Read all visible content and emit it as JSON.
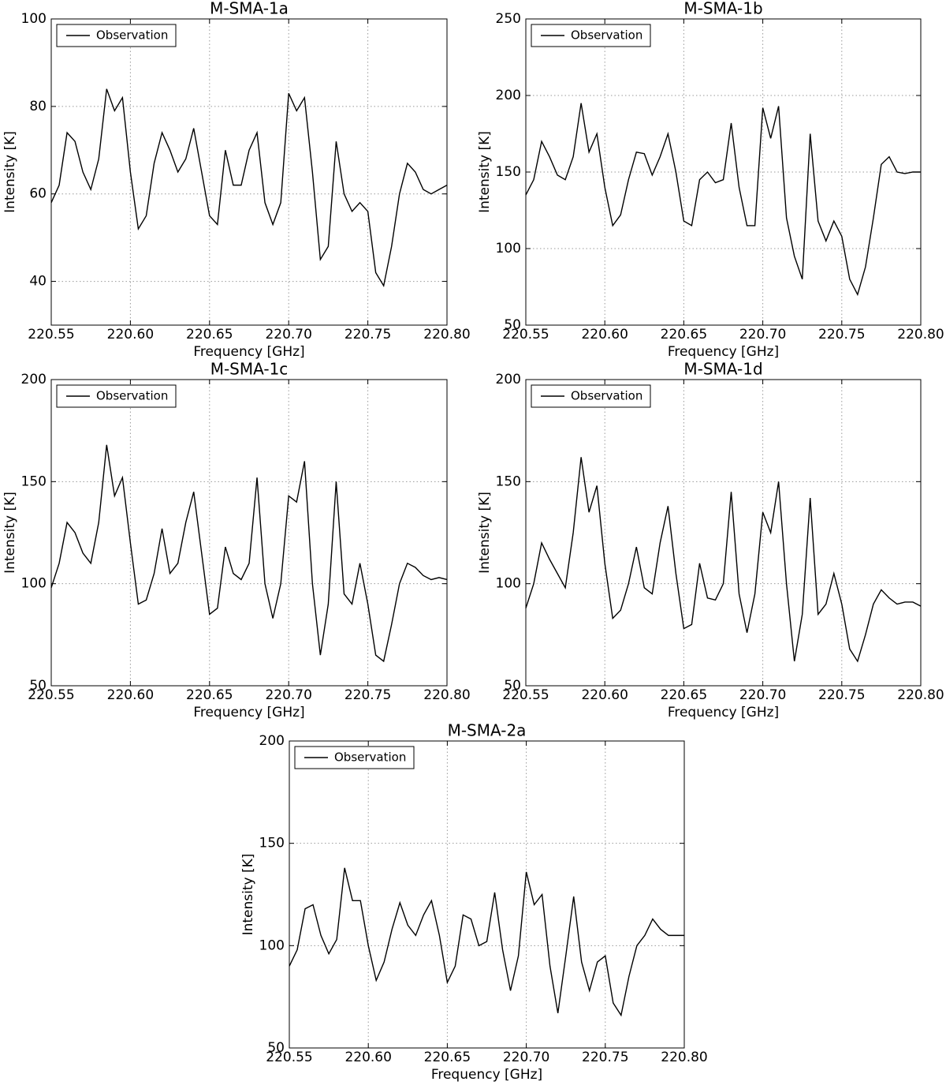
{
  "chart_data": [
    {
      "type": "line",
      "title": "M-SMA-1a",
      "xlabel": "Frequency [GHz]",
      "ylabel": "Intensity [K]",
      "grid": true,
      "legend": "upper left",
      "xlim": [
        220.55,
        220.8
      ],
      "ylim": [
        30,
        100
      ],
      "xticks": [
        220.55,
        {
          "value": 220.6,
          "label": "220.60"
        },
        220.65,
        {
          "value": 220.7,
          "label": "220.70"
        },
        220.75,
        {
          "value": 220.8,
          "label": "220.80"
        }
      ],
      "yticks": [
        40,
        60,
        80,
        100
      ],
      "x": [
        220.55,
        220.555,
        220.56,
        220.565,
        220.57,
        220.575,
        220.58,
        220.585,
        220.59,
        220.595,
        220.6,
        220.605,
        220.61,
        220.615,
        220.62,
        220.625,
        220.63,
        220.635,
        220.64,
        220.645,
        220.65,
        220.655,
        220.66,
        220.665,
        220.67,
        220.675,
        220.68,
        220.685,
        220.69,
        220.695,
        220.7,
        220.705,
        220.71,
        220.715,
        220.72,
        220.725,
        220.73,
        220.735,
        220.74,
        220.745,
        220.75,
        220.755,
        220.76,
        220.765,
        220.77,
        220.775,
        220.78,
        220.785,
        220.79,
        220.795,
        220.8
      ],
      "series": [
        {
          "name": "Observation",
          "color": "#000000",
          "values": [
            58,
            62,
            74,
            72,
            65,
            61,
            68,
            84,
            79,
            82,
            65,
            52,
            55,
            67,
            74,
            70,
            65,
            68,
            75,
            65,
            55,
            53,
            70,
            62,
            62,
            70,
            74,
            58,
            53,
            58,
            83,
            79,
            82,
            65,
            45,
            48,
            72,
            60,
            56,
            58,
            56,
            42,
            39,
            48,
            60,
            67,
            65,
            61,
            60,
            61,
            62
          ]
        }
      ]
    },
    {
      "type": "line",
      "title": "M-SMA-1b",
      "xlabel": "Frequency [GHz]",
      "ylabel": "Intensity [K]",
      "grid": true,
      "legend": "upper left",
      "xlim": [
        220.55,
        220.8
      ],
      "ylim": [
        50,
        250
      ],
      "xticks": [
        220.55,
        {
          "value": 220.6,
          "label": "220.60"
        },
        220.65,
        {
          "value": 220.7,
          "label": "220.70"
        },
        220.75,
        {
          "value": 220.8,
          "label": "220.80"
        }
      ],
      "yticks": [
        50,
        100,
        150,
        200,
        250
      ],
      "x": [
        220.55,
        220.555,
        220.56,
        220.565,
        220.57,
        220.575,
        220.58,
        220.585,
        220.59,
        220.595,
        220.6,
        220.605,
        220.61,
        220.615,
        220.62,
        220.625,
        220.63,
        220.635,
        220.64,
        220.645,
        220.65,
        220.655,
        220.66,
        220.665,
        220.67,
        220.675,
        220.68,
        220.685,
        220.69,
        220.695,
        220.7,
        220.705,
        220.71,
        220.715,
        220.72,
        220.725,
        220.73,
        220.735,
        220.74,
        220.745,
        220.75,
        220.755,
        220.76,
        220.765,
        220.77,
        220.775,
        220.78,
        220.785,
        220.79,
        220.795,
        220.8
      ],
      "series": [
        {
          "name": "Observation",
          "color": "#000000",
          "values": [
            135,
            145,
            170,
            160,
            148,
            145,
            160,
            195,
            163,
            175,
            140,
            115,
            122,
            145,
            163,
            162,
            148,
            160,
            175,
            150,
            118,
            115,
            145,
            150,
            143,
            145,
            182,
            140,
            115,
            115,
            192,
            172,
            193,
            120,
            95,
            80,
            175,
            118,
            105,
            118,
            108,
            80,
            70,
            88,
            120,
            155,
            160,
            150,
            149,
            150,
            150
          ]
        }
      ]
    },
    {
      "type": "line",
      "title": "M-SMA-1c",
      "xlabel": "Frequency [GHz]",
      "ylabel": "Intensity [K]",
      "grid": true,
      "legend": "upper left",
      "xlim": [
        220.55,
        220.8
      ],
      "ylim": [
        50,
        200
      ],
      "xticks": [
        220.55,
        {
          "value": 220.6,
          "label": "220.60"
        },
        220.65,
        {
          "value": 220.7,
          "label": "220.70"
        },
        220.75,
        {
          "value": 220.8,
          "label": "220.80"
        }
      ],
      "yticks": [
        50,
        100,
        150,
        200
      ],
      "x": [
        220.55,
        220.555,
        220.56,
        220.565,
        220.57,
        220.575,
        220.58,
        220.585,
        220.59,
        220.595,
        220.6,
        220.605,
        220.61,
        220.615,
        220.62,
        220.625,
        220.63,
        220.635,
        220.64,
        220.645,
        220.65,
        220.655,
        220.66,
        220.665,
        220.67,
        220.675,
        220.68,
        220.685,
        220.69,
        220.695,
        220.7,
        220.705,
        220.71,
        220.715,
        220.72,
        220.725,
        220.73,
        220.735,
        220.74,
        220.745,
        220.75,
        220.755,
        220.76,
        220.765,
        220.77,
        220.775,
        220.78,
        220.785,
        220.79,
        220.795,
        220.8
      ],
      "series": [
        {
          "name": "Observation",
          "color": "#000000",
          "values": [
            98,
            110,
            130,
            125,
            115,
            110,
            130,
            168,
            143,
            152,
            120,
            90,
            92,
            105,
            127,
            105,
            110,
            130,
            145,
            115,
            85,
            88,
            118,
            105,
            102,
            110,
            152,
            100,
            83,
            100,
            143,
            140,
            160,
            100,
            65,
            90,
            150,
            95,
            90,
            110,
            90,
            65,
            62,
            80,
            100,
            110,
            108,
            104,
            102,
            103,
            102
          ]
        }
      ]
    },
    {
      "type": "line",
      "title": "M-SMA-1d",
      "xlabel": "Frequency [GHz]",
      "ylabel": "Intensity [K]",
      "grid": true,
      "legend": "upper left",
      "xlim": [
        220.55,
        220.8
      ],
      "ylim": [
        50,
        200
      ],
      "xticks": [
        220.55,
        {
          "value": 220.6,
          "label": "220.60"
        },
        220.65,
        {
          "value": 220.7,
          "label": "220.70"
        },
        220.75,
        {
          "value": 220.8,
          "label": "220.80"
        }
      ],
      "yticks": [
        50,
        100,
        150,
        200
      ],
      "x": [
        220.55,
        220.555,
        220.56,
        220.565,
        220.57,
        220.575,
        220.58,
        220.585,
        220.59,
        220.595,
        220.6,
        220.605,
        220.61,
        220.615,
        220.62,
        220.625,
        220.63,
        220.635,
        220.64,
        220.645,
        220.65,
        220.655,
        220.66,
        220.665,
        220.67,
        220.675,
        220.68,
        220.685,
        220.69,
        220.695,
        220.7,
        220.705,
        220.71,
        220.715,
        220.72,
        220.725,
        220.73,
        220.735,
        220.74,
        220.745,
        220.75,
        220.755,
        220.76,
        220.765,
        220.77,
        220.775,
        220.78,
        220.785,
        220.79,
        220.795,
        220.8
      ],
      "series": [
        {
          "name": "Observation",
          "color": "#000000",
          "values": [
            88,
            100,
            120,
            112,
            105,
            98,
            125,
            162,
            135,
            148,
            110,
            83,
            87,
            100,
            118,
            98,
            95,
            120,
            138,
            105,
            78,
            80,
            110,
            93,
            92,
            100,
            145,
            95,
            76,
            95,
            135,
            125,
            150,
            100,
            62,
            85,
            142,
            85,
            90,
            105,
            90,
            68,
            62,
            75,
            90,
            97,
            93,
            90,
            91,
            91,
            89
          ]
        }
      ]
    },
    {
      "type": "line",
      "title": "M-SMA-2a",
      "xlabel": "Frequency [GHz]",
      "ylabel": "Intensity [K]",
      "grid": true,
      "legend": "upper left",
      "xlim": [
        220.55,
        220.8
      ],
      "ylim": [
        50,
        200
      ],
      "xticks": [
        220.55,
        {
          "value": 220.6,
          "label": "220.60"
        },
        220.65,
        {
          "value": 220.7,
          "label": "220.70"
        },
        220.75,
        {
          "value": 220.8,
          "label": "220.80"
        }
      ],
      "yticks": [
        50,
        100,
        150,
        200
      ],
      "x": [
        220.55,
        220.555,
        220.56,
        220.565,
        220.57,
        220.575,
        220.58,
        220.585,
        220.59,
        220.595,
        220.6,
        220.605,
        220.61,
        220.615,
        220.62,
        220.625,
        220.63,
        220.635,
        220.64,
        220.645,
        220.65,
        220.655,
        220.66,
        220.665,
        220.67,
        220.675,
        220.68,
        220.685,
        220.69,
        220.695,
        220.7,
        220.705,
        220.71,
        220.715,
        220.72,
        220.725,
        220.73,
        220.735,
        220.74,
        220.745,
        220.75,
        220.755,
        220.76,
        220.765,
        220.77,
        220.775,
        220.78,
        220.785,
        220.79,
        220.795,
        220.8
      ],
      "series": [
        {
          "name": "Observation",
          "color": "#000000",
          "values": [
            90,
            98,
            118,
            120,
            105,
            96,
            103,
            138,
            122,
            122,
            100,
            83,
            92,
            108,
            121,
            110,
            105,
            115,
            122,
            105,
            82,
            90,
            115,
            113,
            100,
            102,
            126,
            98,
            78,
            95,
            136,
            120,
            125,
            90,
            67,
            95,
            124,
            92,
            78,
            92,
            95,
            72,
            66,
            85,
            100,
            105,
            113,
            108,
            105,
            105,
            105
          ]
        }
      ]
    }
  ]
}
